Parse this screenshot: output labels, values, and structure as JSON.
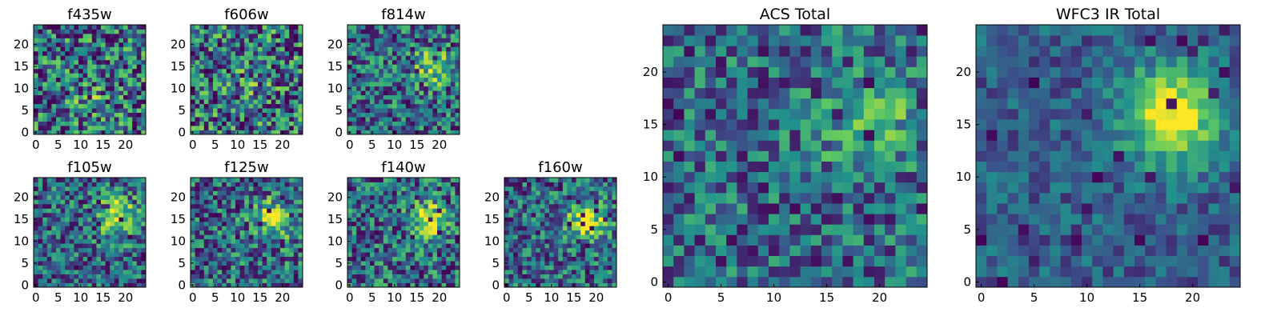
{
  "chart_data": {
    "type": "heatmap",
    "colormap": "viridis",
    "colormap_stops": [
      "#440154",
      "#3b528b",
      "#21918c",
      "#5ec962",
      "#fde725"
    ],
    "panels": [
      {
        "title": "f435w",
        "xticks": [
          "0",
          "5",
          "10",
          "15",
          "20"
        ],
        "yticks": [
          "0",
          "5",
          "10",
          "15",
          "20"
        ],
        "grid": [
          25,
          25
        ],
        "peak": [
          13,
          7
        ],
        "peak_strength": 0.15,
        "noise": 0.85,
        "low_outliers": 0.07
      },
      {
        "title": "f606w",
        "xticks": [
          "0",
          "5",
          "10",
          "15",
          "20"
        ],
        "yticks": [
          "0",
          "5",
          "10",
          "15",
          "20"
        ],
        "grid": [
          25,
          25
        ],
        "peak": [
          12,
          12
        ],
        "peak_strength": 0.1,
        "noise": 0.9,
        "low_outliers": 0.09
      },
      {
        "title": "f814w",
        "xticks": [
          "0",
          "5",
          "10",
          "15",
          "20"
        ],
        "yticks": [
          "0",
          "5",
          "10",
          "15",
          "20"
        ],
        "grid": [
          25,
          25
        ],
        "peak": [
          19,
          15
        ],
        "peak_strength": 0.45,
        "noise": 0.7,
        "low_outliers": 0.06
      },
      {
        "title": "f105w",
        "xticks": [
          "0",
          "5",
          "10",
          "15",
          "20"
        ],
        "yticks": [
          "0",
          "5",
          "10",
          "15",
          "20"
        ],
        "grid": [
          25,
          25
        ],
        "peak": [
          18,
          16
        ],
        "peak_strength": 0.55,
        "noise": 0.65,
        "low_outliers": 0.06
      },
      {
        "title": "f125w",
        "xticks": [
          "0",
          "5",
          "10",
          "15",
          "20"
        ],
        "yticks": [
          "0",
          "5",
          "10",
          "15",
          "20"
        ],
        "grid": [
          25,
          25
        ],
        "peak": [
          18,
          15
        ],
        "peak_strength": 0.5,
        "noise": 0.7,
        "low_outliers": 0.07
      },
      {
        "title": "f140w",
        "xticks": [
          "0",
          "5",
          "10",
          "15",
          "20"
        ],
        "yticks": [
          "0",
          "5",
          "10",
          "15",
          "20"
        ],
        "grid": [
          25,
          25
        ],
        "peak": [
          18,
          15
        ],
        "peak_strength": 0.5,
        "noise": 0.7,
        "low_outliers": 0.07
      },
      {
        "title": "f160w",
        "xticks": [
          "0",
          "5",
          "10",
          "15",
          "20"
        ],
        "yticks": [
          "0",
          "5",
          "10",
          "15",
          "20"
        ],
        "grid": [
          25,
          25
        ],
        "peak": [
          18,
          15
        ],
        "peak_strength": 0.55,
        "noise": 0.65,
        "low_outliers": 0.08
      },
      {
        "title": "ACS Total",
        "xticks": [
          "0",
          "5",
          "10",
          "15",
          "20"
        ],
        "yticks": [
          "0",
          "5",
          "10",
          "15",
          "20"
        ],
        "grid": [
          25,
          25
        ],
        "peak": [
          19,
          15
        ],
        "peak_strength": 0.35,
        "noise": 0.6,
        "low_outliers": 0.05
      },
      {
        "title": "WFC3 IR Total",
        "xticks": [
          "0",
          "5",
          "10",
          "15",
          "20"
        ],
        "yticks": [
          "0",
          "5",
          "10",
          "15",
          "20"
        ],
        "grid": [
          25,
          25
        ],
        "peak": [
          18,
          16
        ],
        "peak_strength": 0.7,
        "noise": 0.35,
        "low_outliers": 0.04
      }
    ]
  }
}
